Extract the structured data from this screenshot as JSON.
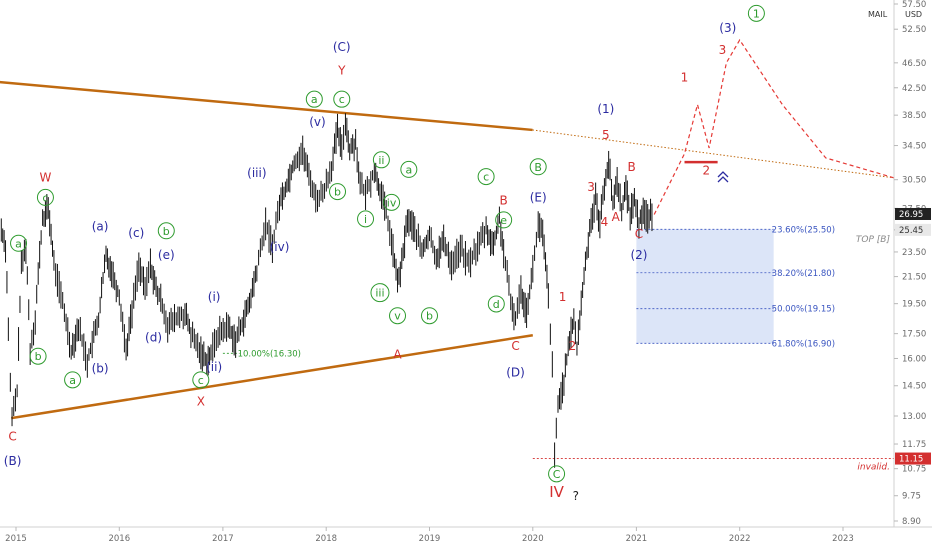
{
  "header": {
    "symbol": "MAIL",
    "currency": "USD"
  },
  "price_tags": {
    "last": "26.95",
    "top_b_label": "TOP [B]",
    "top_b_value": "25.45",
    "invalid_value": "11.15",
    "invalid_label": "invalid."
  },
  "colors": {
    "candles": "#111111",
    "trendline": "#c06a10",
    "red": "#d32f2f",
    "blue": "#2b2ba0",
    "green": "#2e9b2e",
    "fib_fill": "#d6e1f7",
    "fib_line": "#3a55c0",
    "dashed": "#e53935"
  },
  "chart_data": {
    "type": "candlestick",
    "xlabel": "",
    "ylabel": "",
    "x_ticks": [
      "2015",
      "2016",
      "2017",
      "2018",
      "2019",
      "2020",
      "2021",
      "2022",
      "2023"
    ],
    "y_ticks": [
      "57.50",
      "52.50",
      "46.50",
      "42.50",
      "38.50",
      "34.50",
      "30.50",
      "27.50",
      "25.45",
      "23.50",
      "21.50",
      "19.50",
      "17.50",
      "16.00",
      "14.50",
      "13.00",
      "11.75",
      "10.75",
      "9.75",
      "8.90"
    ],
    "y_scale": "log",
    "price_path": [
      [
        "2014-11-10",
        25.5
      ],
      [
        "2014-11-25",
        24.0
      ],
      [
        "2014-12-05",
        18.0
      ],
      [
        "2014-12-12",
        14.5
      ],
      [
        "2014-12-18",
        12.9
      ],
      [
        "2015-01-05",
        14.2
      ],
      [
        "2015-01-20",
        22.3
      ],
      [
        "2015-02-05",
        24.0
      ],
      [
        "2015-02-20",
        16.5
      ],
      [
        "2015-03-10",
        18.5
      ],
      [
        "2015-04-05",
        26.4
      ],
      [
        "2015-04-25",
        27.6
      ],
      [
        "2015-05-15",
        22.5
      ],
      [
        "2015-06-15",
        19.5
      ],
      [
        "2015-07-15",
        16.5
      ],
      [
        "2015-08-10",
        18.0
      ],
      [
        "2015-09-10",
        15.8
      ],
      [
        "2015-10-20",
        18.5
      ],
      [
        "2015-11-15",
        23.2
      ],
      [
        "2015-12-05",
        22.0
      ],
      [
        "2016-01-01",
        20.0
      ],
      [
        "2016-01-25",
        16.5
      ],
      [
        "2016-02-15",
        19.0
      ],
      [
        "2016-03-10",
        22.5
      ],
      [
        "2016-04-01",
        20.5
      ],
      [
        "2016-04-20",
        22.5
      ],
      [
        "2016-05-10",
        20.5
      ],
      [
        "2016-06-01",
        19.5
      ],
      [
        "2016-06-20",
        18.0
      ],
      [
        "2016-07-20",
        18.5
      ],
      [
        "2016-08-20",
        18.8
      ],
      [
        "2016-09-10",
        17.5
      ],
      [
        "2016-10-10",
        16.5
      ],
      [
        "2016-11-05",
        15.9
      ],
      [
        "2016-11-20",
        16.3
      ],
      [
        "2016-12-15",
        17.5
      ],
      [
        "2017-01-20",
        18.0
      ],
      [
        "2017-02-15",
        17.0
      ],
      [
        "2017-03-10",
        18.2
      ],
      [
        "2017-04-05",
        19.5
      ],
      [
        "2017-05-01",
        22.0
      ],
      [
        "2017-06-01",
        26.0
      ],
      [
        "2017-06-25",
        24.0
      ],
      [
        "2017-07-20",
        28.0
      ],
      [
        "2017-08-15",
        30.0
      ],
      [
        "2017-09-10",
        32.5
      ],
      [
        "2017-10-10",
        33.8
      ],
      [
        "2017-11-01",
        31.0
      ],
      [
        "2017-11-25",
        28.5
      ],
      [
        "2017-12-20",
        29.0
      ],
      [
        "2018-01-20",
        32.0
      ],
      [
        "2018-02-10",
        36.5
      ],
      [
        "2018-02-25",
        34.0
      ],
      [
        "2018-03-10",
        37.8
      ],
      [
        "2018-03-25",
        34.0
      ],
      [
        "2018-04-15",
        35.0
      ],
      [
        "2018-05-01",
        30.0
      ],
      [
        "2018-05-20",
        29.0
      ],
      [
        "2018-06-20",
        31.5
      ],
      [
        "2018-07-10",
        29.5
      ],
      [
        "2018-08-01",
        27.0
      ],
      [
        "2018-08-20",
        24.5
      ],
      [
        "2018-09-10",
        21.0
      ],
      [
        "2018-09-25",
        22.5
      ],
      [
        "2018-10-15",
        26.5
      ],
      [
        "2018-11-10",
        25.5
      ],
      [
        "2018-12-05",
        23.5
      ],
      [
        "2019-01-01",
        25.0
      ],
      [
        "2019-01-25",
        23.0
      ],
      [
        "2019-02-20",
        24.5
      ],
      [
        "2019-03-20",
        22.5
      ],
      [
        "2019-04-20",
        23.8
      ],
      [
        "2019-05-20",
        22.5
      ],
      [
        "2019-06-20",
        24.0
      ],
      [
        "2019-07-20",
        25.5
      ],
      [
        "2019-08-15",
        24.0
      ],
      [
        "2019-09-05",
        26.5
      ],
      [
        "2019-09-20",
        23.5
      ],
      [
        "2019-10-15",
        19.5
      ],
      [
        "2019-11-01",
        18.5
      ],
      [
        "2019-11-20",
        20.5
      ],
      [
        "2019-12-10",
        19.0
      ],
      [
        "2020-01-01",
        22.0
      ],
      [
        "2020-01-20",
        26.0
      ],
      [
        "2020-02-05",
        25.0
      ],
      [
        "2020-02-25",
        20.0
      ],
      [
        "2020-03-10",
        15.5
      ],
      [
        "2020-03-18",
        11.2
      ],
      [
        "2020-03-30",
        13.5
      ],
      [
        "2020-04-20",
        14.8
      ],
      [
        "2020-05-10",
        17.0
      ],
      [
        "2020-05-25",
        18.6
      ],
      [
        "2020-06-05",
        16.5
      ],
      [
        "2020-06-20",
        19.5
      ],
      [
        "2020-07-10",
        23.5
      ],
      [
        "2020-07-25",
        26.5
      ],
      [
        "2020-08-10",
        28.5
      ],
      [
        "2020-08-25",
        26.0
      ],
      [
        "2020-09-10",
        30.0
      ],
      [
        "2020-09-25",
        32.5
      ],
      [
        "2020-10-10",
        28.0
      ],
      [
        "2020-10-25",
        30.5
      ],
      [
        "2020-11-10",
        27.5
      ],
      [
        "2020-11-25",
        29.5
      ],
      [
        "2020-12-10",
        27.0
      ],
      [
        "2020-12-25",
        28.5
      ],
      [
        "2021-01-10",
        26.0
      ],
      [
        "2021-01-25",
        27.5
      ],
      [
        "2021-02-10",
        26.5
      ],
      [
        "2021-02-25",
        26.95
      ]
    ],
    "projection": {
      "style": "dashed",
      "points": [
        [
          "2021-03-05",
          26.9
        ],
        [
          "2021-06-20",
          33.5
        ],
        [
          "2021-08-05",
          40.0
        ],
        [
          "2021-09-15",
          34.2
        ],
        [
          "2021-11-15",
          46.5
        ],
        [
          "2022-01-01",
          50.5
        ],
        [
          "2022-06-01",
          40.0
        ],
        [
          "2022-11-01",
          33.0
        ],
        [
          "2023-07-01",
          30.7
        ]
      ]
    },
    "fibonacci": {
      "from": "2021-01-01",
      "to": "2022-05-01",
      "levels": [
        {
          "label": "23.60%(25.50)",
          "value": 25.5
        },
        {
          "label": "38.20%(21.80)",
          "value": 21.8
        },
        {
          "label": "50.00%(19.15)",
          "value": 19.15
        },
        {
          "label": "61.80%(16.90)",
          "value": 16.9
        }
      ],
      "extra_level": {
        "label": "10.00%(16.30)",
        "value": 16.3,
        "from": "2017-01-01",
        "to": "2017-03-01"
      }
    },
    "trendlines": [
      {
        "name": "upper",
        "points": [
          [
            "2014-06-01",
            44.0
          ],
          [
            "2019-12-31",
            36.5
          ]
        ],
        "extension": [
          [
            "2019-12-31",
            36.5
          ],
          [
            "2023-07-01",
            30.7
          ]
        ]
      },
      {
        "name": "lower",
        "points": [
          [
            "2014-12-15",
            12.9
          ],
          [
            "2020-01-01",
            17.4
          ]
        ]
      }
    ],
    "support_levels": [
      {
        "name": "invalidation",
        "value": 11.15,
        "from": "2020-01-01",
        "to": "2023-07-01"
      },
      {
        "name": "target-2",
        "value": 32.5,
        "from": "2021-06-20",
        "to": "2021-10-15"
      }
    ],
    "wave_labels": [
      {
        "t": "C",
        "d": "2014-12-20",
        "v": 11.9,
        "c": "red",
        "s": "plain"
      },
      {
        "t": "(B)",
        "d": "2014-12-20",
        "v": 10.9,
        "c": "blue",
        "s": "plain"
      },
      {
        "t": "W",
        "d": "2015-04-15",
        "v": 30.3,
        "c": "red",
        "s": "plain"
      },
      {
        "t": "c",
        "d": "2015-04-15",
        "v": 28.2,
        "c": "green",
        "s": "circle"
      },
      {
        "t": "a",
        "d": "2015-01-10",
        "v": 23.9,
        "c": "green",
        "s": "circle"
      },
      {
        "t": "b",
        "d": "2015-03-20",
        "v": 15.9,
        "c": "green",
        "s": "circle"
      },
      {
        "t": "a",
        "d": "2015-07-20",
        "v": 14.6,
        "c": "green",
        "s": "circle"
      },
      {
        "t": "(a)",
        "d": "2015-10-25",
        "v": 25.4,
        "c": "blue",
        "s": "plain"
      },
      {
        "t": "(b)",
        "d": "2015-10-25",
        "v": 15.2,
        "c": "blue",
        "s": "plain"
      },
      {
        "t": "(c)",
        "d": "2016-03-01",
        "v": 24.8,
        "c": "blue",
        "s": "plain"
      },
      {
        "t": "(d)",
        "d": "2016-05-01",
        "v": 17.0,
        "c": "blue",
        "s": "plain"
      },
      {
        "t": "(e)",
        "d": "2016-06-15",
        "v": 22.9,
        "c": "blue",
        "s": "plain"
      },
      {
        "t": "b",
        "d": "2016-06-15",
        "v": 25.0,
        "c": "green",
        "s": "circle"
      },
      {
        "t": "(i)",
        "d": "2016-12-01",
        "v": 19.7,
        "c": "blue",
        "s": "plain"
      },
      {
        "t": "(ii)",
        "d": "2016-12-01",
        "v": 15.3,
        "c": "blue",
        "s": "plain"
      },
      {
        "t": "c",
        "d": "2016-10-15",
        "v": 14.6,
        "c": "green",
        "s": "circle"
      },
      {
        "t": "X",
        "d": "2016-10-15",
        "v": 13.5,
        "c": "red",
        "s": "plain"
      },
      {
        "t": "(iii)",
        "d": "2017-05-01",
        "v": 30.8,
        "c": "blue",
        "s": "plain"
      },
      {
        "t": "(iv)",
        "d": "2017-07-20",
        "v": 23.6,
        "c": "blue",
        "s": "plain"
      },
      {
        "t": "(v)",
        "d": "2017-12-01",
        "v": 37.0,
        "c": "blue",
        "s": "plain"
      },
      {
        "t": "a",
        "d": "2017-11-20",
        "v": 40.2,
        "c": "green",
        "s": "circle"
      },
      {
        "t": "b",
        "d": "2018-02-10",
        "v": 28.8,
        "c": "green",
        "s": "circle"
      },
      {
        "t": "c",
        "d": "2018-02-25",
        "v": 40.2,
        "c": "green",
        "s": "circle"
      },
      {
        "t": "Y",
        "d": "2018-02-25",
        "v": 44.6,
        "c": "red",
        "s": "plain"
      },
      {
        "t": "(C)",
        "d": "2018-02-25",
        "v": 48.5,
        "c": "blue",
        "s": "plain"
      },
      {
        "t": "ii",
        "d": "2018-07-15",
        "v": 32.3,
        "c": "green",
        "s": "circle"
      },
      {
        "t": "i",
        "d": "2018-05-20",
        "v": 26.1,
        "c": "green",
        "s": "circle"
      },
      {
        "t": "iii",
        "d": "2018-07-10",
        "v": 20.0,
        "c": "green",
        "s": "circle"
      },
      {
        "t": "iv",
        "d": "2018-08-20",
        "v": 27.7,
        "c": "green",
        "s": "circle"
      },
      {
        "t": "v",
        "d": "2018-09-10",
        "v": 18.4,
        "c": "green",
        "s": "circle"
      },
      {
        "t": "A",
        "d": "2018-09-10",
        "v": 16.0,
        "c": "red",
        "s": "plain"
      },
      {
        "t": "a",
        "d": "2018-10-20",
        "v": 31.2,
        "c": "green",
        "s": "circle"
      },
      {
        "t": "b",
        "d": "2019-01-01",
        "v": 18.4,
        "c": "green",
        "s": "circle"
      },
      {
        "t": "c",
        "d": "2019-07-20",
        "v": 30.4,
        "c": "green",
        "s": "circle"
      },
      {
        "t": "B",
        "d": "2019-09-20",
        "v": 27.9,
        "c": "red",
        "s": "plain"
      },
      {
        "t": "e",
        "d": "2019-09-20",
        "v": 26.0,
        "c": "green",
        "s": "circle"
      },
      {
        "t": "d",
        "d": "2019-08-25",
        "v": 19.2,
        "c": "green",
        "s": "circle"
      },
      {
        "t": "C",
        "d": "2019-11-01",
        "v": 16.5,
        "c": "red",
        "s": "plain"
      },
      {
        "t": "(D)",
        "d": "2019-11-01",
        "v": 15.0,
        "c": "blue",
        "s": "plain"
      },
      {
        "t": "B",
        "d": "2020-01-20",
        "v": 31.5,
        "c": "green",
        "s": "circle"
      },
      {
        "t": "(E)",
        "d": "2020-01-20",
        "v": 28.2,
        "c": "blue",
        "s": "plain"
      },
      {
        "t": "1",
        "d": "2020-04-15",
        "v": 19.7,
        "c": "red",
        "s": "plain"
      },
      {
        "t": "2",
        "d": "2020-05-20",
        "v": 16.5,
        "c": "red",
        "s": "plain"
      },
      {
        "t": "3",
        "d": "2020-07-25",
        "v": 29.3,
        "c": "red",
        "s": "plain"
      },
      {
        "t": "4",
        "d": "2020-09-10",
        "v": 25.8,
        "c": "red",
        "s": "plain"
      },
      {
        "t": "5",
        "d": "2020-09-15",
        "v": 35.3,
        "c": "red",
        "s": "plain"
      },
      {
        "t": "(1)",
        "d": "2020-09-15",
        "v": 38.8,
        "c": "blue",
        "s": "plain"
      },
      {
        "t": "A",
        "d": "2020-10-20",
        "v": 26.3,
        "c": "red",
        "s": "plain"
      },
      {
        "t": "B",
        "d": "2020-12-15",
        "v": 31.5,
        "c": "red",
        "s": "plain"
      },
      {
        "t": "C",
        "d": "2021-01-10",
        "v": 24.7,
        "c": "red",
        "s": "plain"
      },
      {
        "t": "(2)",
        "d": "2021-01-10",
        "v": 22.9,
        "c": "blue",
        "s": "plain"
      },
      {
        "t": "C",
        "d": "2020-03-25",
        "v": 10.4,
        "c": "green",
        "s": "circle"
      },
      {
        "t": "IV",
        "d": "2020-03-25",
        "v": 9.7,
        "c": "red",
        "s": "plain"
      },
      {
        "t": "?",
        "d": "2020-06-01",
        "v": 9.6,
        "c": "black",
        "s": "plain"
      },
      {
        "t": "1",
        "d": "2021-06-20",
        "v": 43.5,
        "c": "red",
        "s": "plain"
      },
      {
        "t": "2",
        "d": "2021-09-05",
        "v": 31.1,
        "c": "red",
        "s": "plain"
      },
      {
        "t": "3",
        "d": "2021-11-01",
        "v": 48.0,
        "c": "red",
        "s": "plain"
      },
      {
        "t": "(3)",
        "d": "2021-11-20",
        "v": 52.0,
        "c": "blue",
        "s": "plain"
      },
      {
        "t": "1",
        "d": "2022-03-01",
        "v": 54.8,
        "c": "green",
        "s": "circle"
      }
    ]
  }
}
